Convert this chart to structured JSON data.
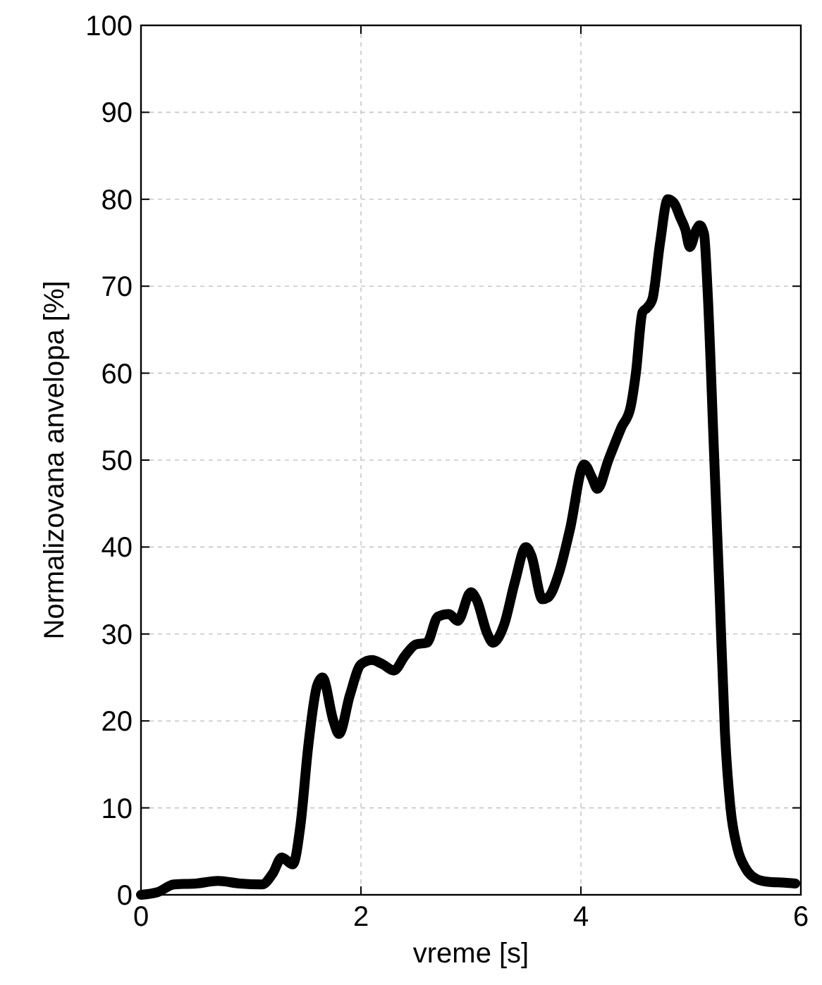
{
  "chart_data": {
    "type": "line",
    "xlabel": "vreme [s]",
    "ylabel": "Normalizovana anvelopa [%]",
    "xlim": [
      0,
      6
    ],
    "ylim": [
      0,
      100
    ],
    "xticks": [
      0,
      2,
      4,
      6
    ],
    "yticks": [
      0,
      10,
      20,
      30,
      40,
      50,
      60,
      70,
      80,
      90,
      100
    ],
    "grid": true,
    "line_style": "solid",
    "marker": "none",
    "series": [
      {
        "color": "#000000",
        "x": [
          0,
          0.15,
          0.3,
          0.5,
          0.7,
          0.9,
          1.1,
          1.2,
          1.28,
          1.38,
          1.45,
          1.52,
          1.6,
          1.65,
          1.75,
          1.8,
          1.9,
          2.0,
          2.1,
          2.2,
          2.3,
          2.4,
          2.5,
          2.6,
          2.7,
          2.8,
          2.88,
          3.0,
          3.05,
          3.15,
          3.2,
          3.3,
          3.4,
          3.5,
          3.55,
          3.65,
          3.7,
          3.8,
          3.9,
          4.03,
          4.1,
          4.15,
          4.25,
          4.37,
          4.45,
          4.5,
          4.56,
          4.6,
          4.65,
          4.72,
          4.79,
          4.85,
          4.9,
          4.95,
          4.99,
          5.05,
          5.08,
          5.12,
          5.15,
          5.21,
          5.26,
          5.31,
          5.36,
          5.42,
          5.5,
          5.6,
          5.7,
          5.85,
          5.95
        ],
        "values": [
          0,
          0.3,
          1.2,
          1.3,
          1.6,
          1.3,
          1.2,
          2.5,
          4.3,
          3.5,
          8,
          17,
          24,
          25,
          20,
          18.5,
          23,
          26.5,
          27,
          26.5,
          25.8,
          27.5,
          28.8,
          29,
          32,
          32.3,
          31.5,
          34.8,
          34,
          30,
          29,
          31,
          36,
          40,
          39,
          34,
          34.2,
          37,
          42,
          49.5,
          48,
          46.7,
          50,
          53.8,
          56,
          60,
          67,
          67.5,
          68.5,
          75,
          80,
          79.5,
          78,
          76.5,
          74.5,
          76.5,
          77,
          76,
          70,
          51,
          35,
          18.6,
          10,
          5.5,
          3,
          1.8,
          1.5,
          1.4,
          1.3
        ]
      }
    ]
  }
}
